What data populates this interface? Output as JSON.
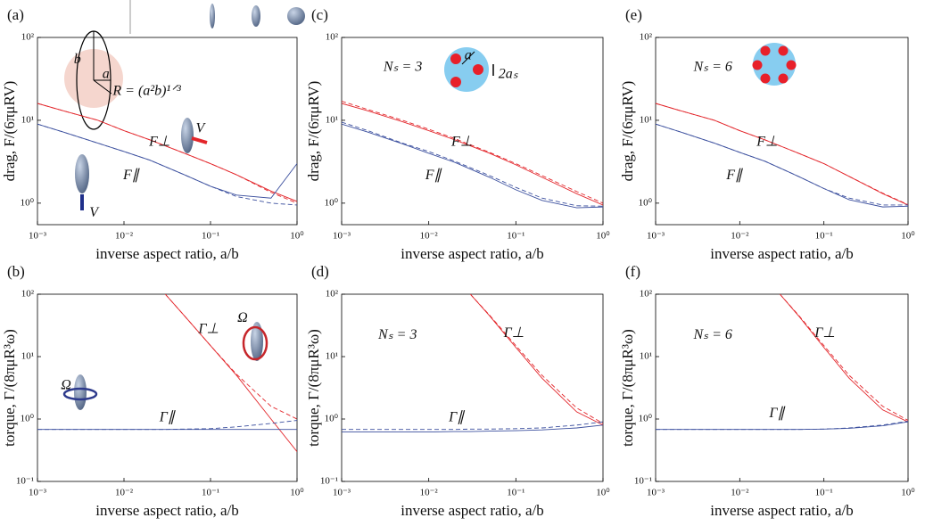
{
  "chart_data": [
    {
      "type": "line",
      "label": "(a)",
      "xlabel": "inverse aspect ratio,  a/b",
      "ylabel": "drag, F/(6πμRV)",
      "log": true,
      "x": [
        0.001,
        0.002,
        0.005,
        0.01,
        0.02,
        0.05,
        0.1,
        0.2,
        0.5,
        1
      ],
      "xlim": [
        0.001,
        1
      ],
      "ylim": [
        0.55,
        100
      ],
      "xticks": [
        {
          "value": 0.001,
          "label": "10⁻³"
        },
        {
          "value": 0.01,
          "label": "10⁻²"
        },
        {
          "value": 0.1,
          "label": "10⁻¹"
        },
        {
          "value": 1,
          "label": "10⁰"
        }
      ],
      "yticks": [
        {
          "value": 1,
          "label": "10⁰"
        },
        {
          "value": 10,
          "label": "10¹"
        },
        {
          "value": 100,
          "label": "10²"
        }
      ],
      "series": [
        {
          "color": "#e3262b",
          "dash": false,
          "values": [
            16,
            13,
            10,
            7.5,
            5.8,
            4.0,
            3.0,
            2.2,
            1.4,
            1.05
          ]
        },
        {
          "color": "#e3262b",
          "dash": true,
          "values": [
            16,
            13,
            10,
            7.5,
            5.8,
            4.0,
            3.0,
            2.2,
            1.35,
            1.0
          ]
        },
        {
          "color": "#3b4f9e",
          "dash": false,
          "values": [
            9,
            7.2,
            5.3,
            4.2,
            3.3,
            2.2,
            1.6,
            1.25,
            1.15,
            3.0
          ]
        },
        {
          "color": "#3b4f9e",
          "dash": true,
          "values": [
            9,
            7.2,
            5.3,
            4.2,
            3.3,
            2.2,
            1.6,
            1.2,
            1.0,
            0.95
          ]
        }
      ],
      "annotations": [
        "F⊥",
        "F∥",
        "V",
        "V",
        "b",
        "a",
        "R = (a²b)¹ᐟ³"
      ]
    },
    {
      "type": "line",
      "label": "(b)",
      "xlabel": "inverse aspect ratio,  a/b",
      "ylabel": "torque, Γ/(8πμR³ω)",
      "log": true,
      "x": [
        0.001,
        0.002,
        0.005,
        0.01,
        0.02,
        0.03,
        0.05,
        0.1,
        0.2,
        0.5,
        1
      ],
      "xlim": [
        0.001,
        1
      ],
      "ylim": [
        0.1,
        100
      ],
      "xticks": [
        {
          "value": 0.001,
          "label": "10⁻³"
        },
        {
          "value": 0.01,
          "label": "10⁻²"
        },
        {
          "value": 0.1,
          "label": "10⁻¹"
        },
        {
          "value": 1,
          "label": "10⁰"
        }
      ],
      "yticks": [
        {
          "value": 0.1,
          "label": "10⁻¹"
        },
        {
          "value": 1,
          "label": "10⁰"
        },
        {
          "value": 10,
          "label": "10¹"
        },
        {
          "value": 100,
          "label": "10²"
        }
      ],
      "series": [
        {
          "color": "#e3262b",
          "dash": false,
          "values": [
            null,
            null,
            null,
            null,
            null,
            100,
            45,
            15,
            5,
            1.0,
            0.3
          ]
        },
        {
          "color": "#e3262b",
          "dash": true,
          "values": [
            null,
            null,
            null,
            null,
            null,
            100,
            45,
            15,
            5.2,
            1.6,
            1.0
          ]
        },
        {
          "color": "#3b4f9e",
          "dash": false,
          "values": [
            0.68,
            0.68,
            0.68,
            0.68,
            0.68,
            0.68,
            0.68,
            0.68,
            0.68,
            0.68,
            0.68
          ]
        },
        {
          "color": "#3b4f9e",
          "dash": true,
          "values": [
            0.68,
            0.68,
            0.68,
            0.68,
            0.68,
            0.68,
            0.69,
            0.7,
            0.75,
            0.85,
            0.95
          ]
        }
      ],
      "annotations": [
        "Γ⊥",
        "Ω",
        "Ω",
        "Γ∥"
      ]
    },
    {
      "type": "line",
      "label": "(c)",
      "xlabel": "inverse aspect ratio,  a/b",
      "ylabel": "drag, F/(6πμRV)",
      "log": true,
      "x": [
        0.001,
        0.002,
        0.005,
        0.01,
        0.02,
        0.05,
        0.1,
        0.2,
        0.5,
        1
      ],
      "xlim": [
        0.001,
        1
      ],
      "ylim": [
        0.55,
        100
      ],
      "xticks": [
        {
          "value": 0.001,
          "label": "10⁻³"
        },
        {
          "value": 0.01,
          "label": "10⁻²"
        },
        {
          "value": 0.1,
          "label": "10⁻¹"
        },
        {
          "value": 1,
          "label": "10⁰"
        }
      ],
      "yticks": [
        {
          "value": 1,
          "label": "10⁰"
        },
        {
          "value": 10,
          "label": "10¹"
        },
        {
          "value": 100,
          "label": "10²"
        }
      ],
      "series": [
        {
          "color": "#e3262b",
          "dash": false,
          "values": [
            16,
            13,
            9.6,
            7.5,
            5.8,
            4.0,
            2.9,
            2.05,
            1.3,
            0.95
          ]
        },
        {
          "color": "#e3262b",
          "dash": true,
          "values": [
            17,
            13.5,
            10,
            7.8,
            6,
            4.1,
            3.0,
            2.15,
            1.38,
            1.0
          ]
        },
        {
          "color": "#3b4f9e",
          "dash": false,
          "values": [
            9.0,
            7.2,
            5.2,
            4.0,
            3.1,
            2.05,
            1.45,
            1.08,
            0.88,
            0.9
          ]
        },
        {
          "color": "#3b4f9e",
          "dash": true,
          "values": [
            9.5,
            7.5,
            5.3,
            4.2,
            3.2,
            2.15,
            1.55,
            1.15,
            0.93,
            0.92
          ]
        }
      ],
      "annotations": [
        "Nₛ = 3",
        "a",
        "2aₛ",
        "F⊥",
        "F∥"
      ]
    },
    {
      "type": "line",
      "label": "(d)",
      "xlabel": "inverse aspect ratio,  a/b",
      "ylabel": "torque, Γ/(8πμR³ω)",
      "log": true,
      "x": [
        0.001,
        0.002,
        0.005,
        0.01,
        0.02,
        0.03,
        0.05,
        0.1,
        0.2,
        0.5,
        1
      ],
      "xlim": [
        0.001,
        1
      ],
      "ylim": [
        0.1,
        100
      ],
      "xticks": [
        {
          "value": 0.001,
          "label": "10⁻³"
        },
        {
          "value": 0.01,
          "label": "10⁻²"
        },
        {
          "value": 0.1,
          "label": "10⁻¹"
        },
        {
          "value": 1,
          "label": "10⁰"
        }
      ],
      "yticks": [
        {
          "value": 0.1,
          "label": "10⁻¹"
        },
        {
          "value": 1,
          "label": "10⁰"
        },
        {
          "value": 10,
          "label": "10¹"
        },
        {
          "value": 100,
          "label": "10²"
        }
      ],
      "series": [
        {
          "color": "#e3262b",
          "dash": false,
          "values": [
            null,
            null,
            null,
            null,
            null,
            100,
            45,
            14,
            4.5,
            1.3,
            0.8
          ]
        },
        {
          "color": "#e3262b",
          "dash": true,
          "values": [
            null,
            null,
            null,
            null,
            null,
            100,
            46,
            15,
            5,
            1.5,
            0.85
          ]
        },
        {
          "color": "#3b4f9e",
          "dash": false,
          "values": [
            0.62,
            0.62,
            0.62,
            0.62,
            0.63,
            0.63,
            0.64,
            0.65,
            0.67,
            0.72,
            0.8
          ]
        },
        {
          "color": "#3b4f9e",
          "dash": true,
          "values": [
            0.68,
            0.68,
            0.68,
            0.68,
            0.68,
            0.69,
            0.69,
            0.7,
            0.72,
            0.8,
            0.9
          ]
        }
      ],
      "annotations": [
        "Nₛ = 3",
        "Γ⊥",
        "Γ∥"
      ]
    },
    {
      "type": "line",
      "label": "(e)",
      "xlabel": "inverse aspect ratio,  a/b",
      "ylabel": "drag, F/(6πμRV)",
      "log": true,
      "x": [
        0.001,
        0.002,
        0.005,
        0.01,
        0.02,
        0.05,
        0.1,
        0.2,
        0.5,
        1
      ],
      "xlim": [
        0.001,
        1
      ],
      "ylim": [
        0.55,
        100
      ],
      "xticks": [
        {
          "value": 0.001,
          "label": "10⁻³"
        },
        {
          "value": 0.01,
          "label": "10⁻²"
        },
        {
          "value": 0.1,
          "label": "10⁻¹"
        },
        {
          "value": 1,
          "label": "10⁰"
        }
      ],
      "yticks": [
        {
          "value": 1,
          "label": "10⁰"
        },
        {
          "value": 10,
          "label": "10¹"
        },
        {
          "value": 100,
          "label": "10²"
        }
      ],
      "series": [
        {
          "color": "#e3262b",
          "dash": false,
          "values": [
            16,
            13,
            10,
            7.5,
            5.8,
            4.0,
            3.0,
            2.1,
            1.3,
            0.95
          ]
        },
        {
          "color": "#e3262b",
          "dash": true,
          "values": [
            16,
            13,
            10,
            7.5,
            5.8,
            4.0,
            3.0,
            2.1,
            1.32,
            0.96
          ]
        },
        {
          "color": "#3b4f9e",
          "dash": false,
          "values": [
            9,
            7.2,
            5.3,
            4.1,
            3.2,
            2.1,
            1.5,
            1.1,
            0.9,
            0.92
          ]
        },
        {
          "color": "#3b4f9e",
          "dash": true,
          "values": [
            9,
            7.2,
            5.3,
            4.1,
            3.2,
            2.1,
            1.5,
            1.15,
            0.95,
            0.95
          ]
        }
      ],
      "annotations": [
        "Nₛ = 6",
        "F⊥",
        "F∥"
      ]
    },
    {
      "type": "line",
      "label": "(f)",
      "xlabel": "inverse aspect ratio,  a/b",
      "ylabel": "torque, Γ/(8πμR³ω)",
      "log": true,
      "x": [
        0.001,
        0.002,
        0.005,
        0.01,
        0.02,
        0.03,
        0.05,
        0.1,
        0.2,
        0.5,
        1
      ],
      "xlim": [
        0.001,
        1
      ],
      "ylim": [
        0.1,
        100
      ],
      "xticks": [
        {
          "value": 0.001,
          "label": "10⁻³"
        },
        {
          "value": 0.01,
          "label": "10⁻²"
        },
        {
          "value": 0.1,
          "label": "10⁻¹"
        },
        {
          "value": 1,
          "label": "10⁰"
        }
      ],
      "yticks": [
        {
          "value": 0.1,
          "label": "10⁻¹"
        },
        {
          "value": 1,
          "label": "10⁰"
        },
        {
          "value": 10,
          "label": "10¹"
        },
        {
          "value": 100,
          "label": "10²"
        }
      ],
      "series": [
        {
          "color": "#e3262b",
          "dash": false,
          "values": [
            null,
            null,
            null,
            null,
            null,
            100,
            45,
            14,
            4.5,
            1.4,
            0.9
          ]
        },
        {
          "color": "#e3262b",
          "dash": true,
          "values": [
            null,
            null,
            null,
            null,
            null,
            100,
            46,
            15,
            5,
            1.6,
            0.95
          ]
        },
        {
          "color": "#3b4f9e",
          "dash": false,
          "values": [
            0.68,
            0.68,
            0.68,
            0.68,
            0.68,
            0.68,
            0.68,
            0.69,
            0.71,
            0.78,
            0.9
          ]
        },
        {
          "color": "#3b4f9e",
          "dash": true,
          "values": [
            0.68,
            0.68,
            0.68,
            0.68,
            0.68,
            0.68,
            0.68,
            0.69,
            0.72,
            0.8,
            0.92
          ]
        }
      ],
      "annotations": [
        "Nₛ = 6",
        "Γ⊥",
        "Γ∥"
      ]
    }
  ]
}
